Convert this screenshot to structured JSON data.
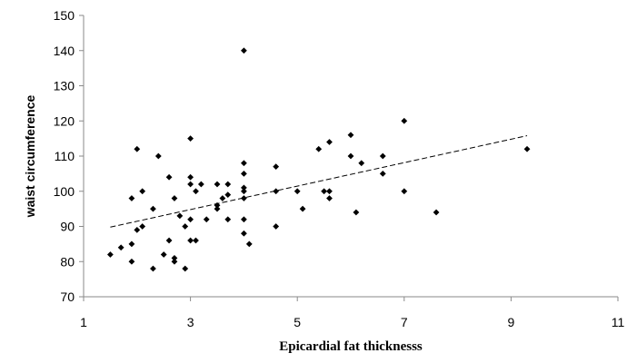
{
  "chart_data": {
    "type": "scatter",
    "xlabel": "Epicardial fat thicknesss",
    "ylabel": "waist circumference",
    "xlim": [
      1,
      11
    ],
    "ylim": [
      70,
      150
    ],
    "xticks": [
      1,
      3,
      5,
      7,
      9,
      11
    ],
    "yticks": [
      70,
      80,
      90,
      100,
      110,
      120,
      130,
      140,
      150
    ],
    "grid": false,
    "legend": "none",
    "marker": "diamond",
    "marker_color": "#000000",
    "trendline": {
      "style": "dashed",
      "x": [
        1.5,
        9.3
      ],
      "y": [
        89.8,
        115.8
      ]
    },
    "points": [
      [
        1.5,
        82
      ],
      [
        1.7,
        84
      ],
      [
        1.9,
        80
      ],
      [
        1.9,
        85
      ],
      [
        1.9,
        98
      ],
      [
        2.0,
        112
      ],
      [
        2.0,
        89
      ],
      [
        2.1,
        90
      ],
      [
        2.1,
        100
      ],
      [
        2.3,
        95
      ],
      [
        2.3,
        78
      ],
      [
        2.4,
        110
      ],
      [
        2.5,
        82
      ],
      [
        2.6,
        86
      ],
      [
        2.6,
        104
      ],
      [
        2.7,
        80
      ],
      [
        2.7,
        81
      ],
      [
        2.7,
        98
      ],
      [
        2.8,
        93
      ],
      [
        2.9,
        78
      ],
      [
        2.9,
        90
      ],
      [
        3.0,
        115
      ],
      [
        3.0,
        104
      ],
      [
        3.0,
        102
      ],
      [
        3.0,
        92
      ],
      [
        3.0,
        86
      ],
      [
        3.1,
        100
      ],
      [
        3.1,
        86
      ],
      [
        3.2,
        102
      ],
      [
        3.3,
        92
      ],
      [
        3.5,
        102
      ],
      [
        3.5,
        95
      ],
      [
        3.5,
        96
      ],
      [
        3.6,
        98
      ],
      [
        3.7,
        102
      ],
      [
        3.7,
        92
      ],
      [
        3.7,
        99
      ],
      [
        4.0,
        140
      ],
      [
        4.0,
        108
      ],
      [
        4.0,
        105
      ],
      [
        4.0,
        101
      ],
      [
        4.0,
        100
      ],
      [
        4.0,
        98
      ],
      [
        4.0,
        92
      ],
      [
        4.0,
        88
      ],
      [
        4.1,
        85
      ],
      [
        4.6,
        107
      ],
      [
        4.6,
        100
      ],
      [
        4.6,
        90
      ],
      [
        5.0,
        100
      ],
      [
        5.1,
        95
      ],
      [
        5.4,
        112
      ],
      [
        5.5,
        100
      ],
      [
        5.6,
        114
      ],
      [
        5.6,
        100
      ],
      [
        5.6,
        98
      ],
      [
        6.0,
        116
      ],
      [
        6.0,
        110
      ],
      [
        6.1,
        94
      ],
      [
        6.2,
        108
      ],
      [
        6.6,
        110
      ],
      [
        6.6,
        105
      ],
      [
        7.0,
        120
      ],
      [
        7.0,
        100
      ],
      [
        7.6,
        94
      ],
      [
        9.3,
        112
      ]
    ]
  }
}
